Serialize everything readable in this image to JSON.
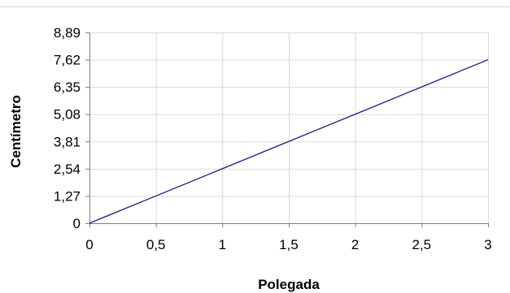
{
  "chart_data": {
    "type": "line",
    "title": "",
    "xlabel": "Polegada",
    "ylabel": "Centímetro",
    "xlim": [
      0,
      3
    ],
    "ylim": [
      0,
      8.89
    ],
    "x_ticks": [
      0,
      0.5,
      1,
      1.5,
      2,
      2.5,
      3
    ],
    "x_tick_labels": [
      "0",
      "0,5",
      "1",
      "1,5",
      "2",
      "2,5",
      "3"
    ],
    "y_ticks": [
      0,
      1.27,
      2.54,
      3.81,
      5.08,
      6.35,
      7.62,
      8.89
    ],
    "y_tick_labels": [
      "0",
      "1,27",
      "2,54",
      "3,81",
      "5,08",
      "6,35",
      "7,62",
      "8,89"
    ],
    "grid": true,
    "legend": "none",
    "series": [
      {
        "x": [
          0,
          0.5,
          1,
          1.5,
          2,
          2.5,
          3
        ],
        "y": [
          0,
          1.27,
          2.54,
          3.81,
          5.08,
          6.35,
          7.62
        ],
        "color": "#1f1a80"
      }
    ],
    "colors": {
      "gridline": "#d9d9d9",
      "axis": "#808080"
    }
  }
}
